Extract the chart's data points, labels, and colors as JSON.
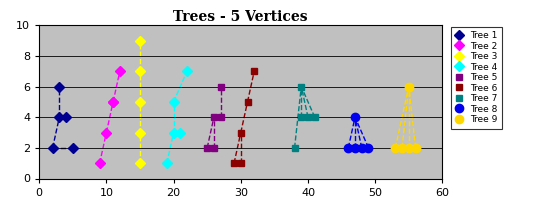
{
  "title": "Trees - 5 Vertices",
  "xlim": [
    0,
    60
  ],
  "ylim": [
    0,
    10
  ],
  "bg_color": "#c0c0c0",
  "xticks": [
    0,
    10,
    20,
    30,
    40,
    50,
    60
  ],
  "yticks": [
    0,
    2,
    4,
    6,
    8,
    10
  ],
  "trees": [
    {
      "name": "Tree 1",
      "color": "#000090",
      "marker": "D",
      "msize": 5,
      "nodes_x": [
        2,
        3,
        4,
        3,
        5
      ],
      "nodes_y": [
        2,
        4,
        4,
        6,
        2
      ],
      "edges": [
        [
          0,
          1
        ],
        [
          1,
          2
        ],
        [
          1,
          3
        ],
        [
          0,
          4
        ]
      ]
    },
    {
      "name": "Tree 2",
      "color": "#FF00FF",
      "marker": "D",
      "msize": 5,
      "nodes_x": [
        9,
        10,
        11,
        12,
        11
      ],
      "nodes_y": [
        1,
        3,
        5,
        7,
        5
      ],
      "edges": [
        [
          0,
          1
        ],
        [
          1,
          2
        ],
        [
          2,
          3
        ],
        [
          2,
          4
        ]
      ]
    },
    {
      "name": "Tree 3",
      "color": "#FFFF00",
      "marker": "D",
      "msize": 5,
      "nodes_x": [
        15,
        15,
        15,
        15,
        15
      ],
      "nodes_y": [
        1,
        3,
        5,
        7,
        9
      ],
      "edges": [
        [
          0,
          1
        ],
        [
          1,
          2
        ],
        [
          2,
          3
        ],
        [
          3,
          4
        ]
      ]
    },
    {
      "name": "Tree 4",
      "color": "#00FFFF",
      "marker": "D",
      "msize": 5,
      "nodes_x": [
        19,
        20,
        21,
        20,
        22
      ],
      "nodes_y": [
        1,
        3,
        3,
        5,
        7
      ],
      "edges": [
        [
          0,
          1
        ],
        [
          1,
          2
        ],
        [
          1,
          3
        ],
        [
          3,
          4
        ]
      ]
    },
    {
      "name": "Tree 5",
      "color": "#800080",
      "marker": "s",
      "msize": 5,
      "nodes_x": [
        25,
        26,
        26,
        27,
        27
      ],
      "nodes_y": [
        2,
        2,
        4,
        4,
        6
      ],
      "edges": [
        [
          0,
          2
        ],
        [
          1,
          2
        ],
        [
          2,
          3
        ],
        [
          3,
          4
        ]
      ]
    },
    {
      "name": "Tree 6",
      "color": "#8B0000",
      "marker": "s",
      "msize": 5,
      "nodes_x": [
        29,
        30,
        30,
        31,
        32
      ],
      "nodes_y": [
        1,
        1,
        3,
        5,
        7
      ],
      "edges": [
        [
          0,
          2
        ],
        [
          1,
          2
        ],
        [
          2,
          3
        ],
        [
          3,
          4
        ]
      ]
    },
    {
      "name": "Tree 7",
      "color": "#008080",
      "marker": "s",
      "msize": 5,
      "nodes_x": [
        38,
        39,
        40,
        41,
        39
      ],
      "nodes_y": [
        2,
        4,
        4,
        4,
        6
      ],
      "edges": [
        [
          0,
          4
        ],
        [
          1,
          4
        ],
        [
          2,
          4
        ],
        [
          3,
          4
        ]
      ]
    },
    {
      "name": "Tree 8",
      "color": "#0000EE",
      "marker": "o",
      "msize": 6,
      "nodes_x": [
        46,
        47,
        48,
        49,
        47
      ],
      "nodes_y": [
        2,
        2,
        2,
        2,
        4
      ],
      "edges": [
        [
          0,
          4
        ],
        [
          1,
          4
        ],
        [
          2,
          4
        ],
        [
          3,
          4
        ]
      ]
    },
    {
      "name": "Tree 9",
      "color": "#FFD700",
      "marker": "o",
      "msize": 6,
      "nodes_x": [
        53,
        54,
        55,
        56,
        55
      ],
      "nodes_y": [
        2,
        2,
        2,
        2,
        6
      ],
      "edges": [
        [
          0,
          4
        ],
        [
          1,
          4
        ],
        [
          2,
          4
        ],
        [
          3,
          4
        ]
      ]
    }
  ]
}
